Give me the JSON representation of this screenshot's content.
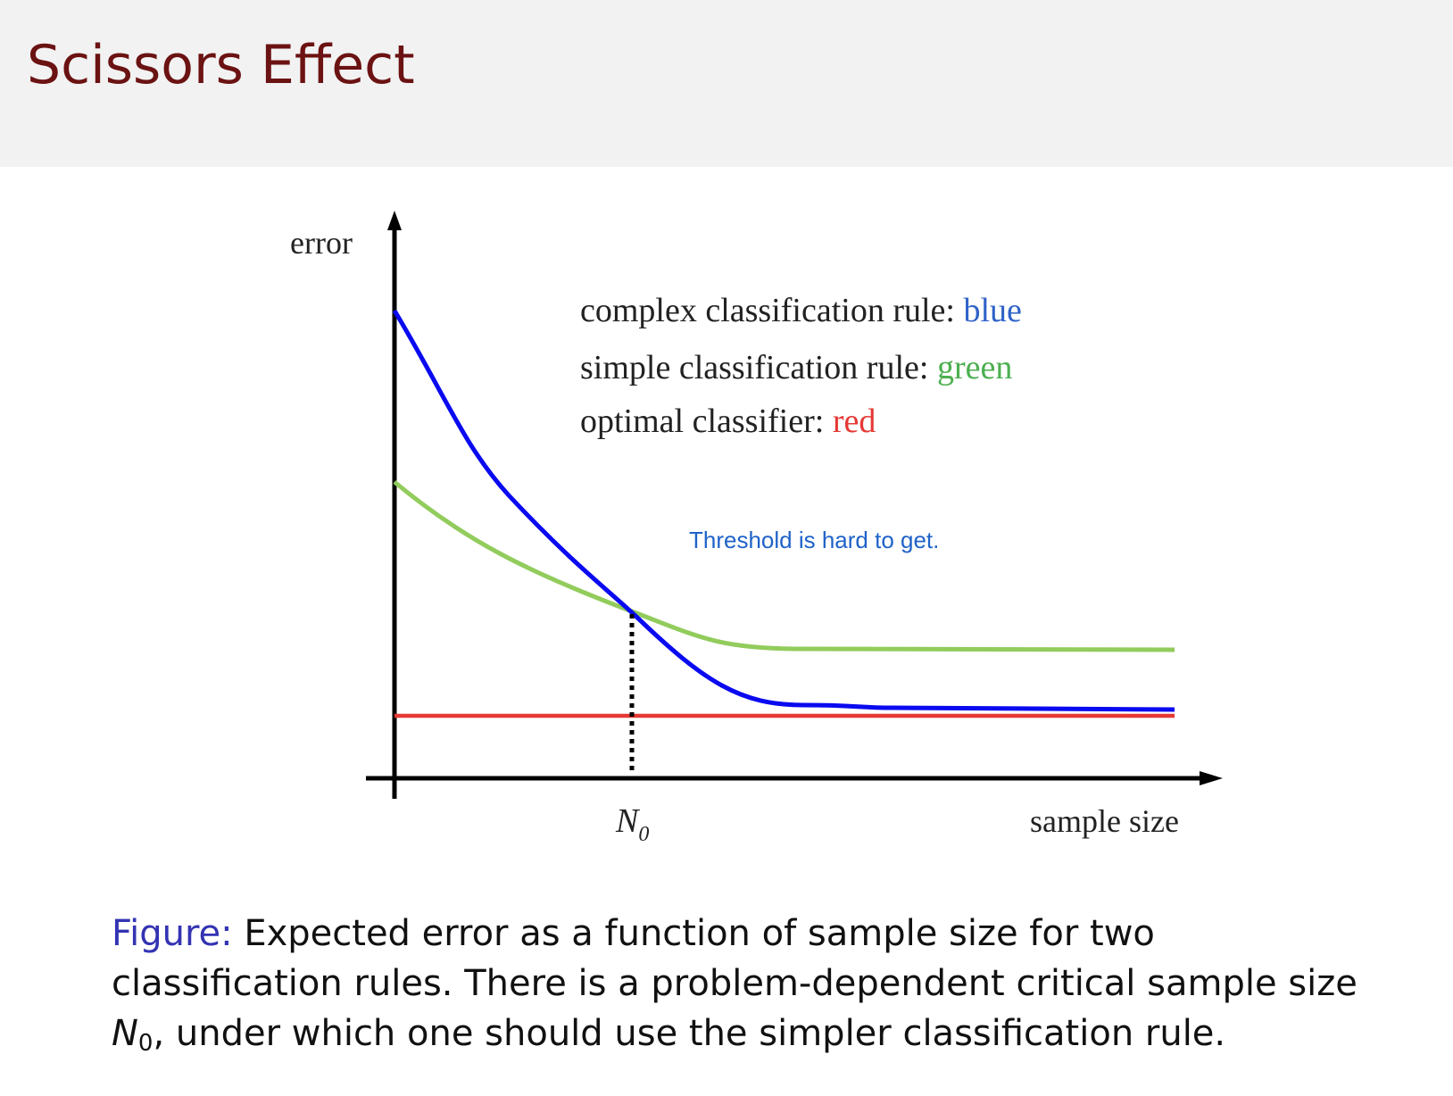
{
  "slide": {
    "title": "Scissors Effect"
  },
  "figure": {
    "y_axis_label": "error",
    "x_axis_label": "sample size",
    "n0_label_main": "N",
    "n0_label_sub": "0",
    "legend": [
      {
        "text": "complex classification rule: ",
        "color_word": "blue",
        "color": "#2f62c8"
      },
      {
        "text": "simple classification rule: ",
        "color_word": "green",
        "color": "#4caf50"
      },
      {
        "text": "optimal classifier: ",
        "color_word": "red",
        "color": "#e53935"
      }
    ],
    "annotation": "Threshold is hard to get.",
    "annotation_color": "#1f62c8",
    "curve_colors": {
      "complex": "#0a0af0",
      "simple": "#92cc5c",
      "optimal": "#e53935"
    }
  },
  "caption": {
    "label": "Figure:",
    "part1": " Expected error as a function of sample size for two classification rules. There is a problem-dependent critical sample size ",
    "n0_main": "N",
    "n0_sub": "0",
    "part2": ", under which one should use the simpler classification rule."
  }
}
